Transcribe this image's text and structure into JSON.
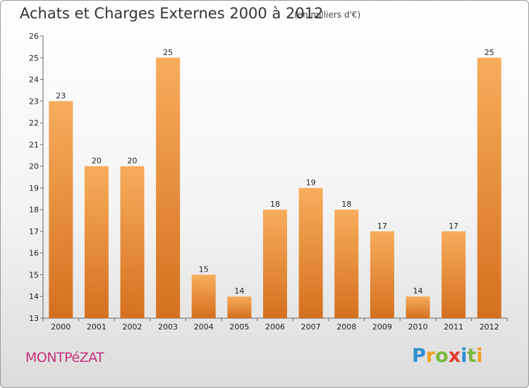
{
  "title": "Achats et Charges Externes 2000 à 2012",
  "subtitle": "(en milliers d'€)",
  "city": "MONTPéZAT",
  "logo": {
    "letters": [
      "P",
      "r",
      "o",
      "x",
      "i",
      "t",
      "i"
    ],
    "colors": [
      "#2f8fd0",
      "#f0a020",
      "#7ab83c",
      "#e23a2a",
      "#2f8fd0",
      "#7ab83c",
      "#f0a020"
    ]
  },
  "colors": {
    "bar_light": "#f7ad5c",
    "bar_dark": "#d4701f",
    "city": "#c6327c"
  },
  "chart_data": {
    "type": "bar",
    "categories": [
      "2000",
      "2001",
      "2002",
      "2003",
      "2004",
      "2005",
      "2006",
      "2007",
      "2008",
      "2009",
      "2010",
      "2011",
      "2012"
    ],
    "values": [
      23,
      20,
      20,
      25,
      15,
      14,
      18,
      19,
      18,
      17,
      14,
      17,
      25
    ],
    "ylim": [
      13,
      26
    ],
    "yticks": [
      13,
      14,
      15,
      16,
      17,
      18,
      19,
      20,
      21,
      22,
      23,
      24,
      25,
      26
    ],
    "grid": false
  }
}
